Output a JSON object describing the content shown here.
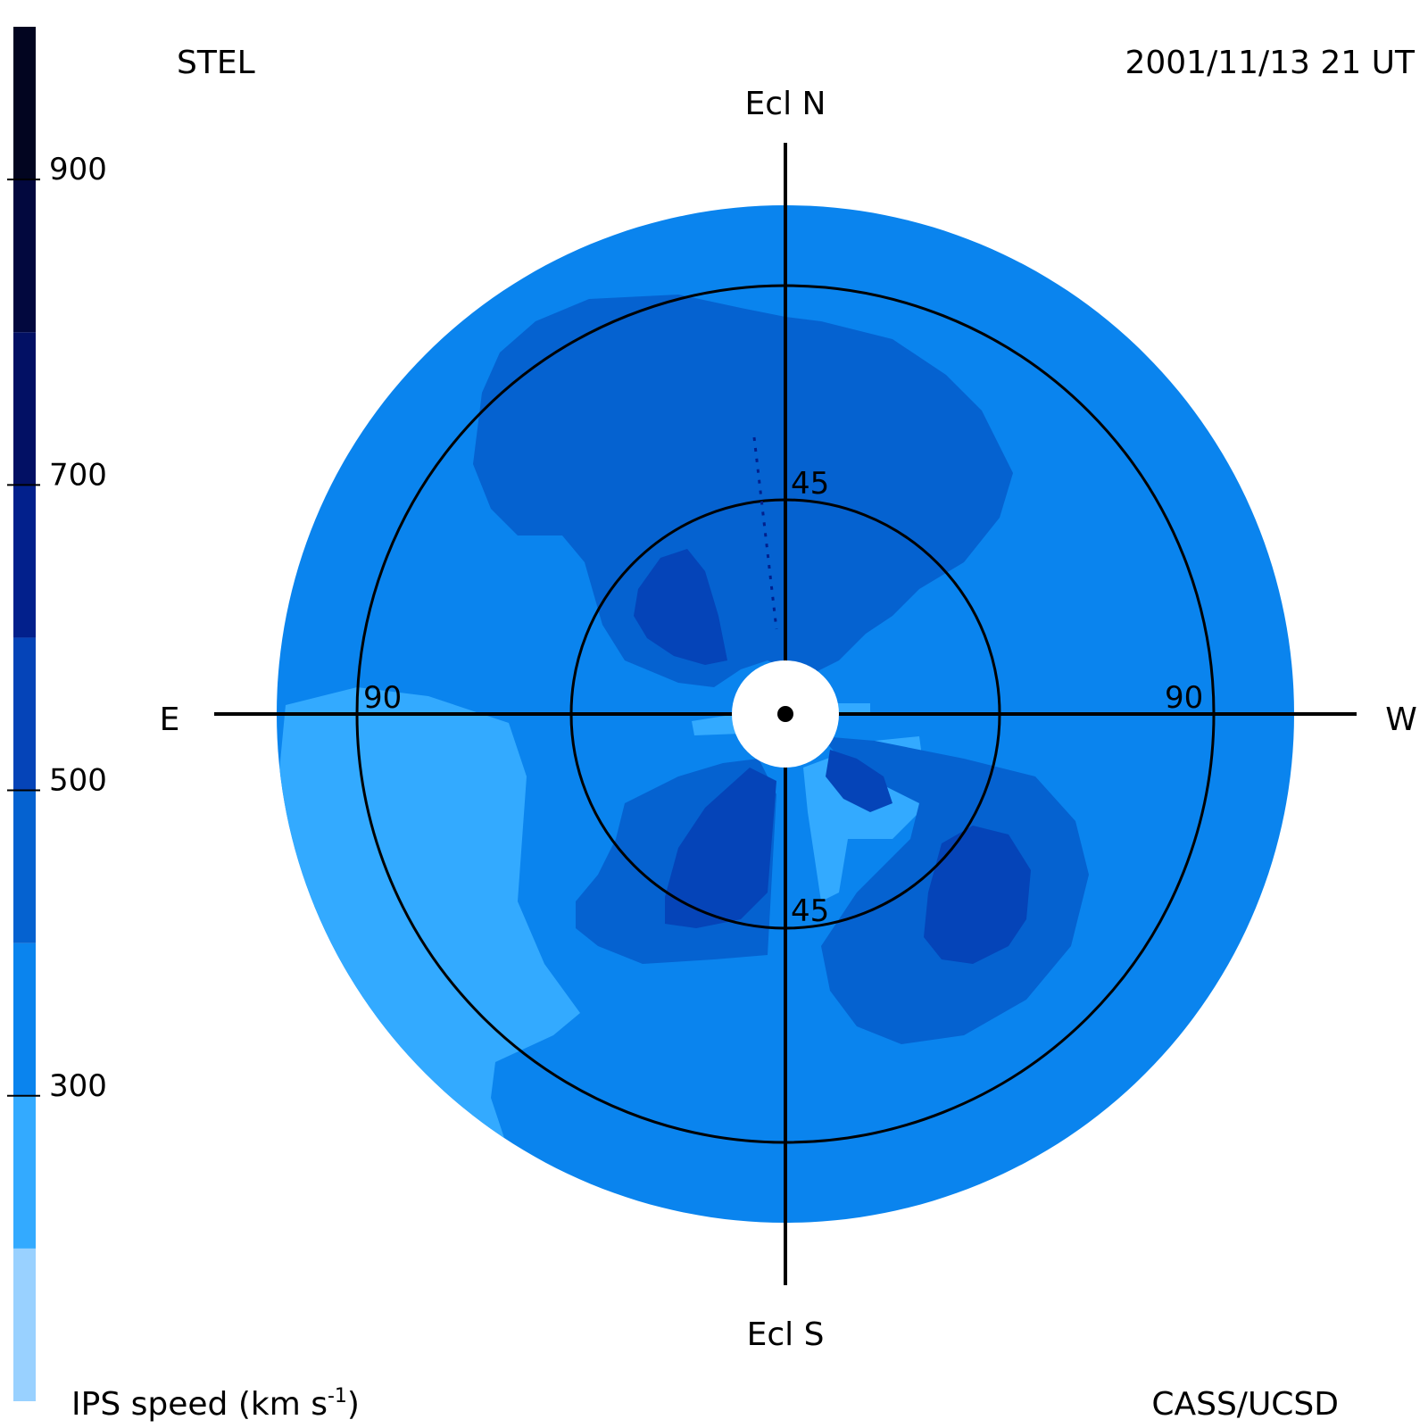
{
  "header": {
    "observatory": "STEL",
    "timestamp": "2001/11/13 21 UT"
  },
  "footer": {
    "credit": "CASS/UCSD"
  },
  "colorbar": {
    "label_main": "IPS speed (km s",
    "label_sup": "-1",
    "label_end": ")",
    "ticks": [
      "300",
      "500",
      "700",
      "900"
    ],
    "range": [
      100,
      1000
    ],
    "bands": [
      {
        "from": 100,
        "to": 200,
        "color": "#99d1ff"
      },
      {
        "from": 200,
        "to": 300,
        "color": "#33aaff"
      },
      {
        "from": 300,
        "to": 400,
        "color": "#0a84ee"
      },
      {
        "from": 400,
        "to": 500,
        "color": "#0562d0"
      },
      {
        "from": 500,
        "to": 600,
        "color": "#0544b8"
      },
      {
        "from": 600,
        "to": 700,
        "color": "#02208c"
      },
      {
        "from": 700,
        "to": 800,
        "color": "#021064"
      },
      {
        "from": 800,
        "to": 900,
        "color": "#02083e"
      },
      {
        "from": 900,
        "to": 1000,
        "color": "#020520"
      }
    ]
  },
  "chart_data": {
    "type": "heatmap",
    "projection": "polar sky map centered on Sun",
    "directions": {
      "north": "Ecl N",
      "south": "Ecl S",
      "east": "E",
      "west": "W"
    },
    "elongation_circles": [
      {
        "elongation_deg": 45,
        "label": "45"
      },
      {
        "elongation_deg": 90,
        "label": "90"
      }
    ],
    "map_extent_elongation_deg": 110,
    "sun_disk_elongation_deg": 12,
    "colors": {
      "background_speed": "#0a84ee",
      "slow_speed": "#33aaff",
      "medium_speed": "#0562d0",
      "fast_speed": "#0544b8",
      "axis": "#000000"
    }
  }
}
